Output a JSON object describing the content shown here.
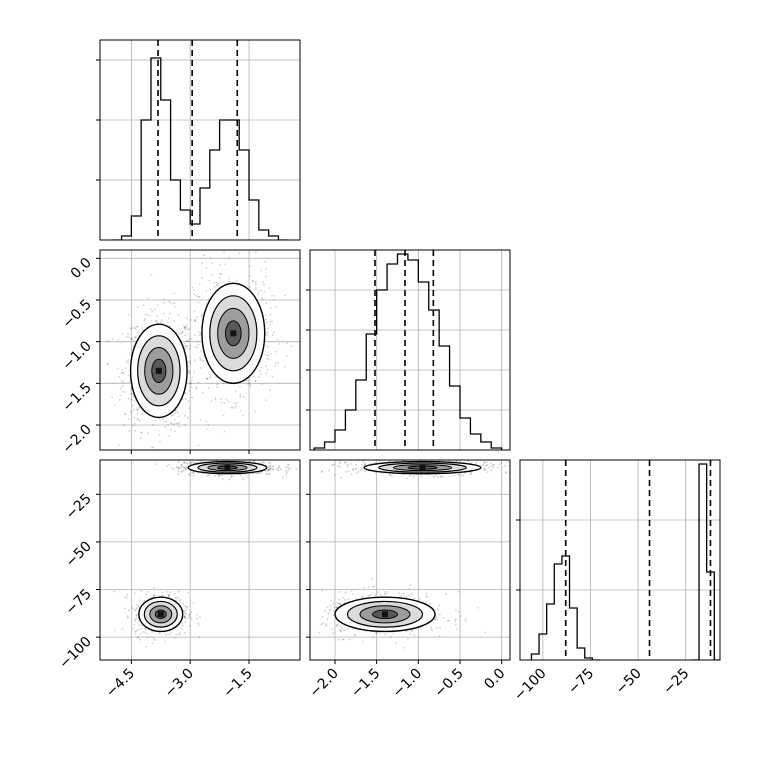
{
  "chart_data": {
    "type": "corner",
    "grid": true,
    "panels": [
      {
        "kind": "histogram",
        "row": 0,
        "col": 0,
        "variable": "x",
        "xlim": [
          -5.3,
          -0.2
        ],
        "bin_edges": [
          -5.0,
          -4.75,
          -4.5,
          -4.25,
          -4.0,
          -3.75,
          -3.5,
          -3.25,
          -3.0,
          -2.75,
          -2.5,
          -2.25,
          -2.0,
          -1.75,
          -1.5,
          -1.25,
          -1.0,
          -0.75,
          -0.5
        ],
        "counts": [
          0,
          0.02,
          0.12,
          0.6,
          0.91,
          0.7,
          0.3,
          0.15,
          0.08,
          0.26,
          0.45,
          0.6,
          0.6,
          0.45,
          0.2,
          0.05,
          0.02,
          0
        ],
        "quantiles": [
          -3.82,
          -2.95,
          -1.8
        ],
        "yticks": [
          0.3,
          0.6,
          0.9
        ]
      },
      {
        "kind": "histogram",
        "row": 1,
        "col": 1,
        "variable": "y",
        "xlim": [
          -2.3,
          0.1
        ],
        "bin_edges": [
          -2.25,
          -2.125,
          -2.0,
          -1.875,
          -1.75,
          -1.625,
          -1.5,
          -1.375,
          -1.25,
          -1.125,
          -1.0,
          -0.875,
          -0.75,
          -0.625,
          -0.5,
          -0.375,
          -0.25,
          -0.125,
          0.0
        ],
        "counts": [
          0.01,
          0.04,
          0.1,
          0.2,
          0.35,
          0.58,
          0.8,
          0.93,
          0.98,
          0.95,
          0.84,
          0.7,
          0.52,
          0.32,
          0.16,
          0.08,
          0.04,
          0.01
        ],
        "quantiles": [
          -1.52,
          -1.16,
          -0.82
        ],
        "yticks": [
          0.2,
          0.4,
          0.6,
          0.8
        ]
      },
      {
        "kind": "histogram",
        "row": 2,
        "col": 2,
        "variable": "z",
        "xlim": [
          -112,
          -7
        ],
        "bin_edges": [
          -106,
          -102,
          -98,
          -94,
          -90,
          -86,
          -82,
          -78,
          -74,
          -70,
          -22,
          -18,
          -14,
          -10,
          -6
        ],
        "counts": [
          0.03,
          0.13,
          0.28,
          0.48,
          0.52,
          0.26,
          0.06,
          0.01,
          0.0,
          null,
          0.0,
          0.98,
          0.44,
          0.0
        ],
        "quantiles": [
          -88,
          -44,
          -12
        ],
        "yticks": [
          0.35,
          0.7
        ]
      },
      {
        "kind": "hist2d",
        "row": 1,
        "col": 1,
        "grid_col": 0,
        "xvar": "x",
        "yvar": "y",
        "xlim": [
          -5.3,
          -0.2
        ],
        "ylim": [
          -2.3,
          0.1
        ],
        "modes": [
          {
            "cx": -3.8,
            "cy": -1.35,
            "sx": 0.36,
            "sy": 0.28,
            "n": 800
          },
          {
            "cx": -1.9,
            "cy": -0.9,
            "sx": 0.4,
            "sy": 0.3,
            "n": 700
          }
        ]
      },
      {
        "kind": "hist2d",
        "row": 2,
        "col": 0,
        "xvar": "x",
        "yvar": "z",
        "xlim": [
          -5.3,
          -0.2
        ],
        "ylim": [
          -112,
          -7
        ],
        "modes": [
          {
            "cx": -3.75,
            "cy": -88,
            "sx": 0.28,
            "sy": 4.5,
            "n": 500
          },
          {
            "cx": -2.05,
            "cy": -11,
            "sx": 0.5,
            "sy": 1.6,
            "n": 600
          }
        ]
      },
      {
        "kind": "hist2d",
        "row": 2,
        "col": 1,
        "xvar": "y",
        "yvar": "z",
        "xlim": [
          -2.3,
          0.1
        ],
        "ylim": [
          -112,
          -7
        ],
        "modes": [
          {
            "cx": -1.4,
            "cy": -88,
            "sx": 0.3,
            "sy": 4.5,
            "n": 500
          },
          {
            "cx": -0.95,
            "cy": -11,
            "sx": 0.35,
            "sy": 1.6,
            "n": 600
          }
        ]
      }
    ],
    "axes": {
      "x": {
        "ticks": [
          -4.5,
          -3.0,
          -1.5
        ],
        "tick_labels": [
          "−4.5",
          "−3.0",
          "−1.5"
        ]
      },
      "y": {
        "ticks": [
          -2.0,
          -1.5,
          -1.0,
          -0.5,
          0.0
        ],
        "tick_labels": [
          "−2.0",
          "−1.5",
          "−1.0",
          "−0.5",
          "0.0"
        ]
      },
      "z": {
        "ticks": [
          -100,
          -75,
          -50,
          -25
        ],
        "tick_labels": [
          "−100",
          "−75",
          "−50",
          "−25"
        ]
      }
    }
  }
}
